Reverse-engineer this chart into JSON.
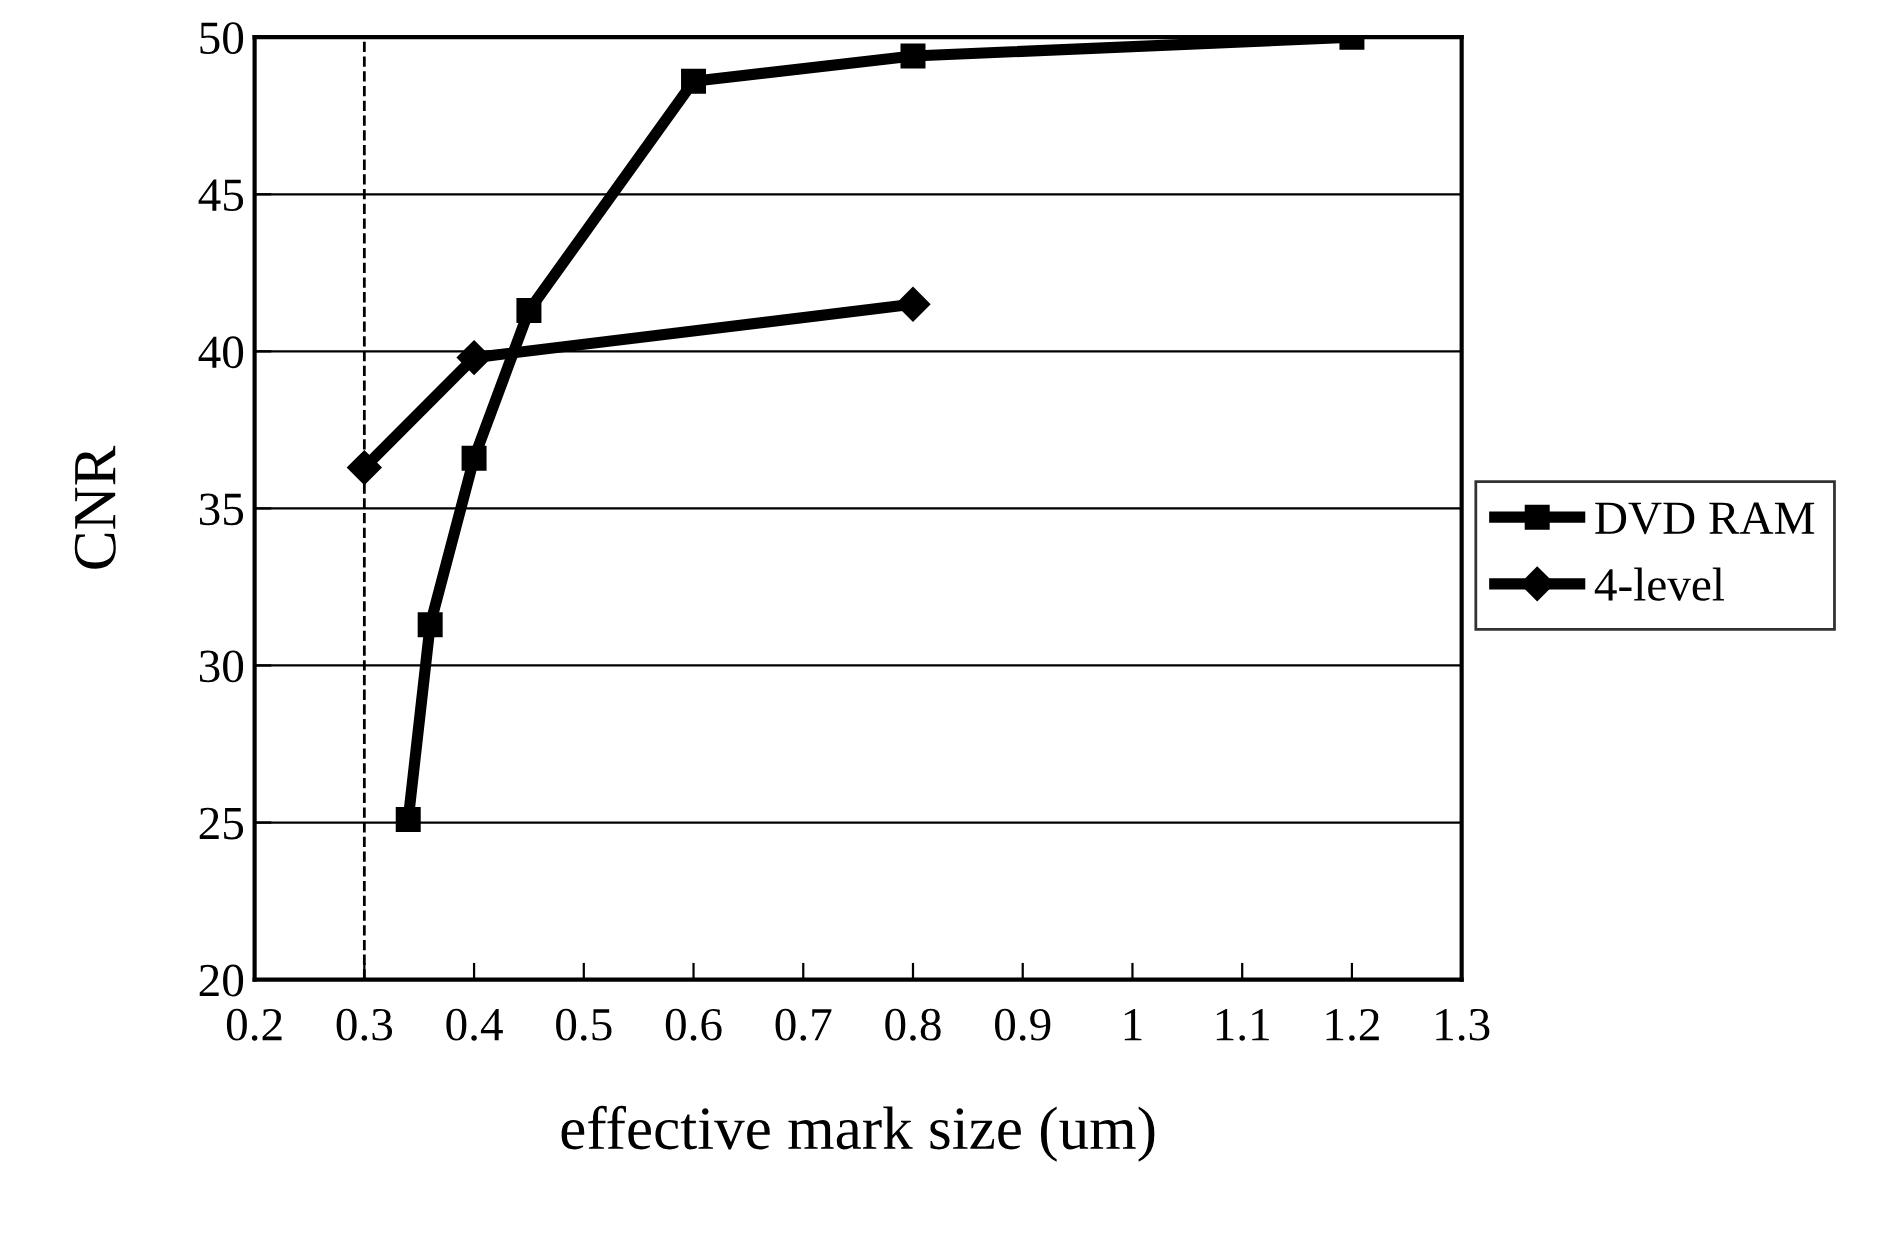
{
  "chart_data": {
    "type": "line",
    "xlabel": "effective mark size (um)",
    "ylabel": "CNR",
    "xlim": [
      0.2,
      1.3
    ],
    "xticks": [
      0.2,
      0.3,
      0.4,
      0.5,
      0.6,
      0.7,
      0.8,
      0.9,
      1,
      1.1,
      1.2,
      1.3
    ],
    "ylim": [
      20,
      50
    ],
    "yticks": [
      20,
      25,
      30,
      35,
      40,
      45,
      50
    ],
    "grid": "y",
    "legend": "right",
    "series": [
      {
        "name": "DVD RAM",
        "color": "#000000",
        "marker": "square",
        "x": [
          0.34,
          0.36,
          0.4,
          0.45,
          0.6,
          0.8,
          1.2
        ],
        "values": [
          25.1,
          31.3,
          36.6,
          41.3,
          48.6,
          49.4,
          50.0
        ]
      },
      {
        "name": "4-level",
        "color": "#000000",
        "marker": "diamond",
        "x": [
          0.3,
          0.4,
          0.8
        ],
        "values": [
          36.3,
          39.8,
          41.5
        ]
      }
    ],
    "ref_lines": [
      {
        "axis": "x",
        "value": 0.3,
        "color": "#000000",
        "line_style": "dashed"
      }
    ]
  }
}
